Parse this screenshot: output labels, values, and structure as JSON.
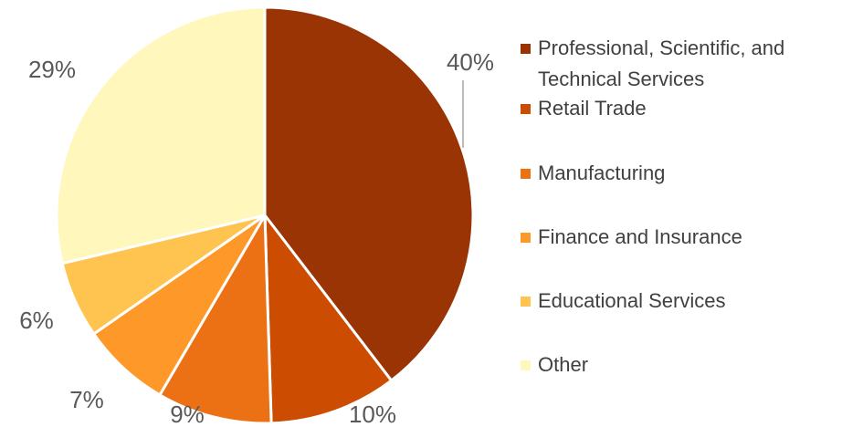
{
  "chart_data": {
    "type": "pie",
    "categories": [
      "Professional, Scientific, and Technical Services",
      "Retail Trade",
      "Manufacturing",
      "Finance and Insurance",
      "Educational Services",
      "Other"
    ],
    "values": [
      40,
      10,
      9,
      7,
      6,
      29
    ],
    "value_labels": [
      "40%",
      "10%",
      "9%",
      "7%",
      "6%",
      "29%"
    ],
    "colors": [
      "#9a3404",
      "#cc4c02",
      "#ec7014",
      "#fe9929",
      "#fec44f",
      "#fff7bc"
    ],
    "legend": "right"
  }
}
